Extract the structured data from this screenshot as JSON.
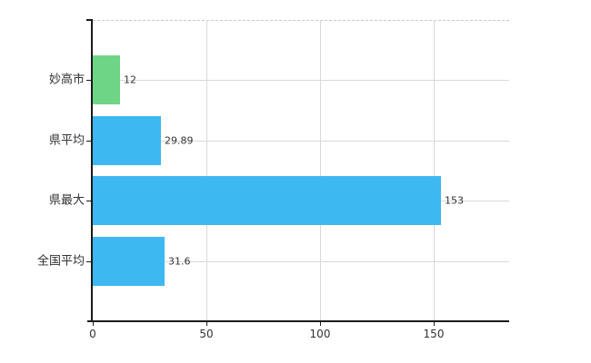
{
  "chart_data": {
    "type": "bar",
    "orientation": "horizontal",
    "title": "",
    "xlabel": "",
    "ylabel": "",
    "categories": [
      "妙高市",
      "県平均",
      "県最大",
      "全国平均"
    ],
    "values": [
      12,
      29.89,
      153,
      31.6
    ],
    "value_labels": [
      "12",
      "29.89",
      "153",
      "31.6"
    ],
    "bar_colors": [
      "#6FD586",
      "#3EB8F0",
      "#3EB8F0",
      "#3EB8F0"
    ],
    "x_tick_labels": [
      "0",
      "50",
      "100",
      "150"
    ],
    "x_tick_values": [
      0,
      50,
      100,
      150
    ],
    "xlim": [
      0,
      183
    ],
    "grid": true,
    "legend_position": "none"
  },
  "colors": {
    "highlight_bar": "#6FD586",
    "default_bar": "#3EB8F0",
    "grid": "#D9D9D9",
    "plot_top_border": "#C8C8C8",
    "axis": "#1A1A1A",
    "text": "#333333",
    "background": "#FFFFFF"
  }
}
